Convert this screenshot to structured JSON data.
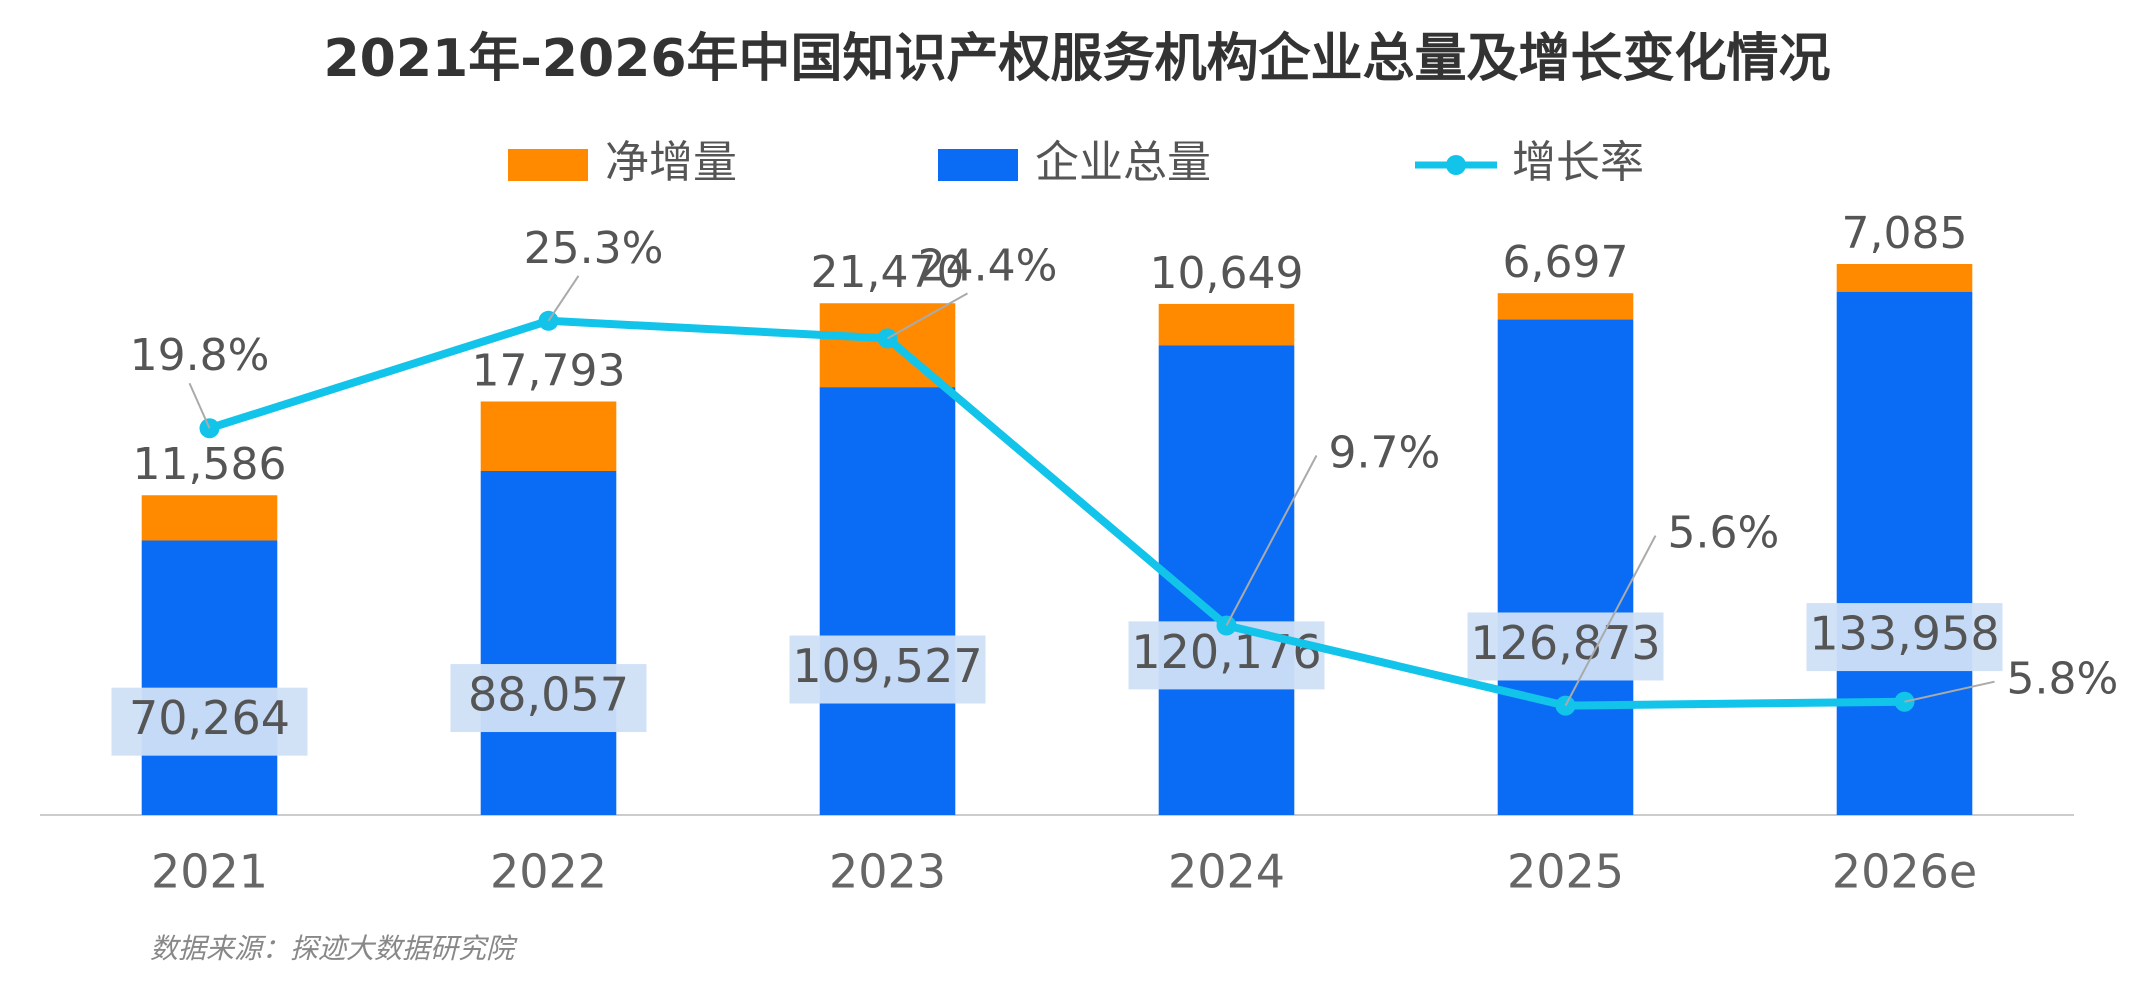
{
  "chart_data": {
    "type": "bar",
    "title": "2021年-2026年中国知识产权服务机构企业总量及增长变化情况",
    "categories": [
      "2021",
      "2022",
      "2023",
      "2024",
      "2025",
      "2026e"
    ],
    "series": [
      {
        "name": "净增量",
        "type": "bar",
        "color": "#ff8a00",
        "values": [
          11586,
          17793,
          21470,
          10649,
          6697,
          7085
        ],
        "value_labels": [
          "11,586",
          "17,793",
          "21,470",
          "10,649",
          "6,697",
          "7,085"
        ]
      },
      {
        "name": "企业总量",
        "type": "bar",
        "color": "#0a6cf5",
        "values": [
          70264,
          88057,
          109527,
          120176,
          126873,
          133958
        ],
        "value_labels": [
          "70,264",
          "88,057",
          "109,527",
          "120,176",
          "126,873",
          "133,958"
        ]
      },
      {
        "name": "增长率",
        "type": "line",
        "axis": "y2",
        "color": "#12c4ea",
        "values": [
          19.8,
          25.3,
          24.4,
          9.7,
          5.6,
          5.8
        ],
        "value_labels": [
          "19.8%",
          "25.3%",
          "24.4%",
          "9.7%",
          "5.6%",
          "5.8%"
        ]
      }
    ],
    "ylim": [
      0,
      150000
    ],
    "y2lim": [
      0,
      30
    ],
    "stacked": true,
    "source": "数据来源：探迹大数据研究院"
  }
}
